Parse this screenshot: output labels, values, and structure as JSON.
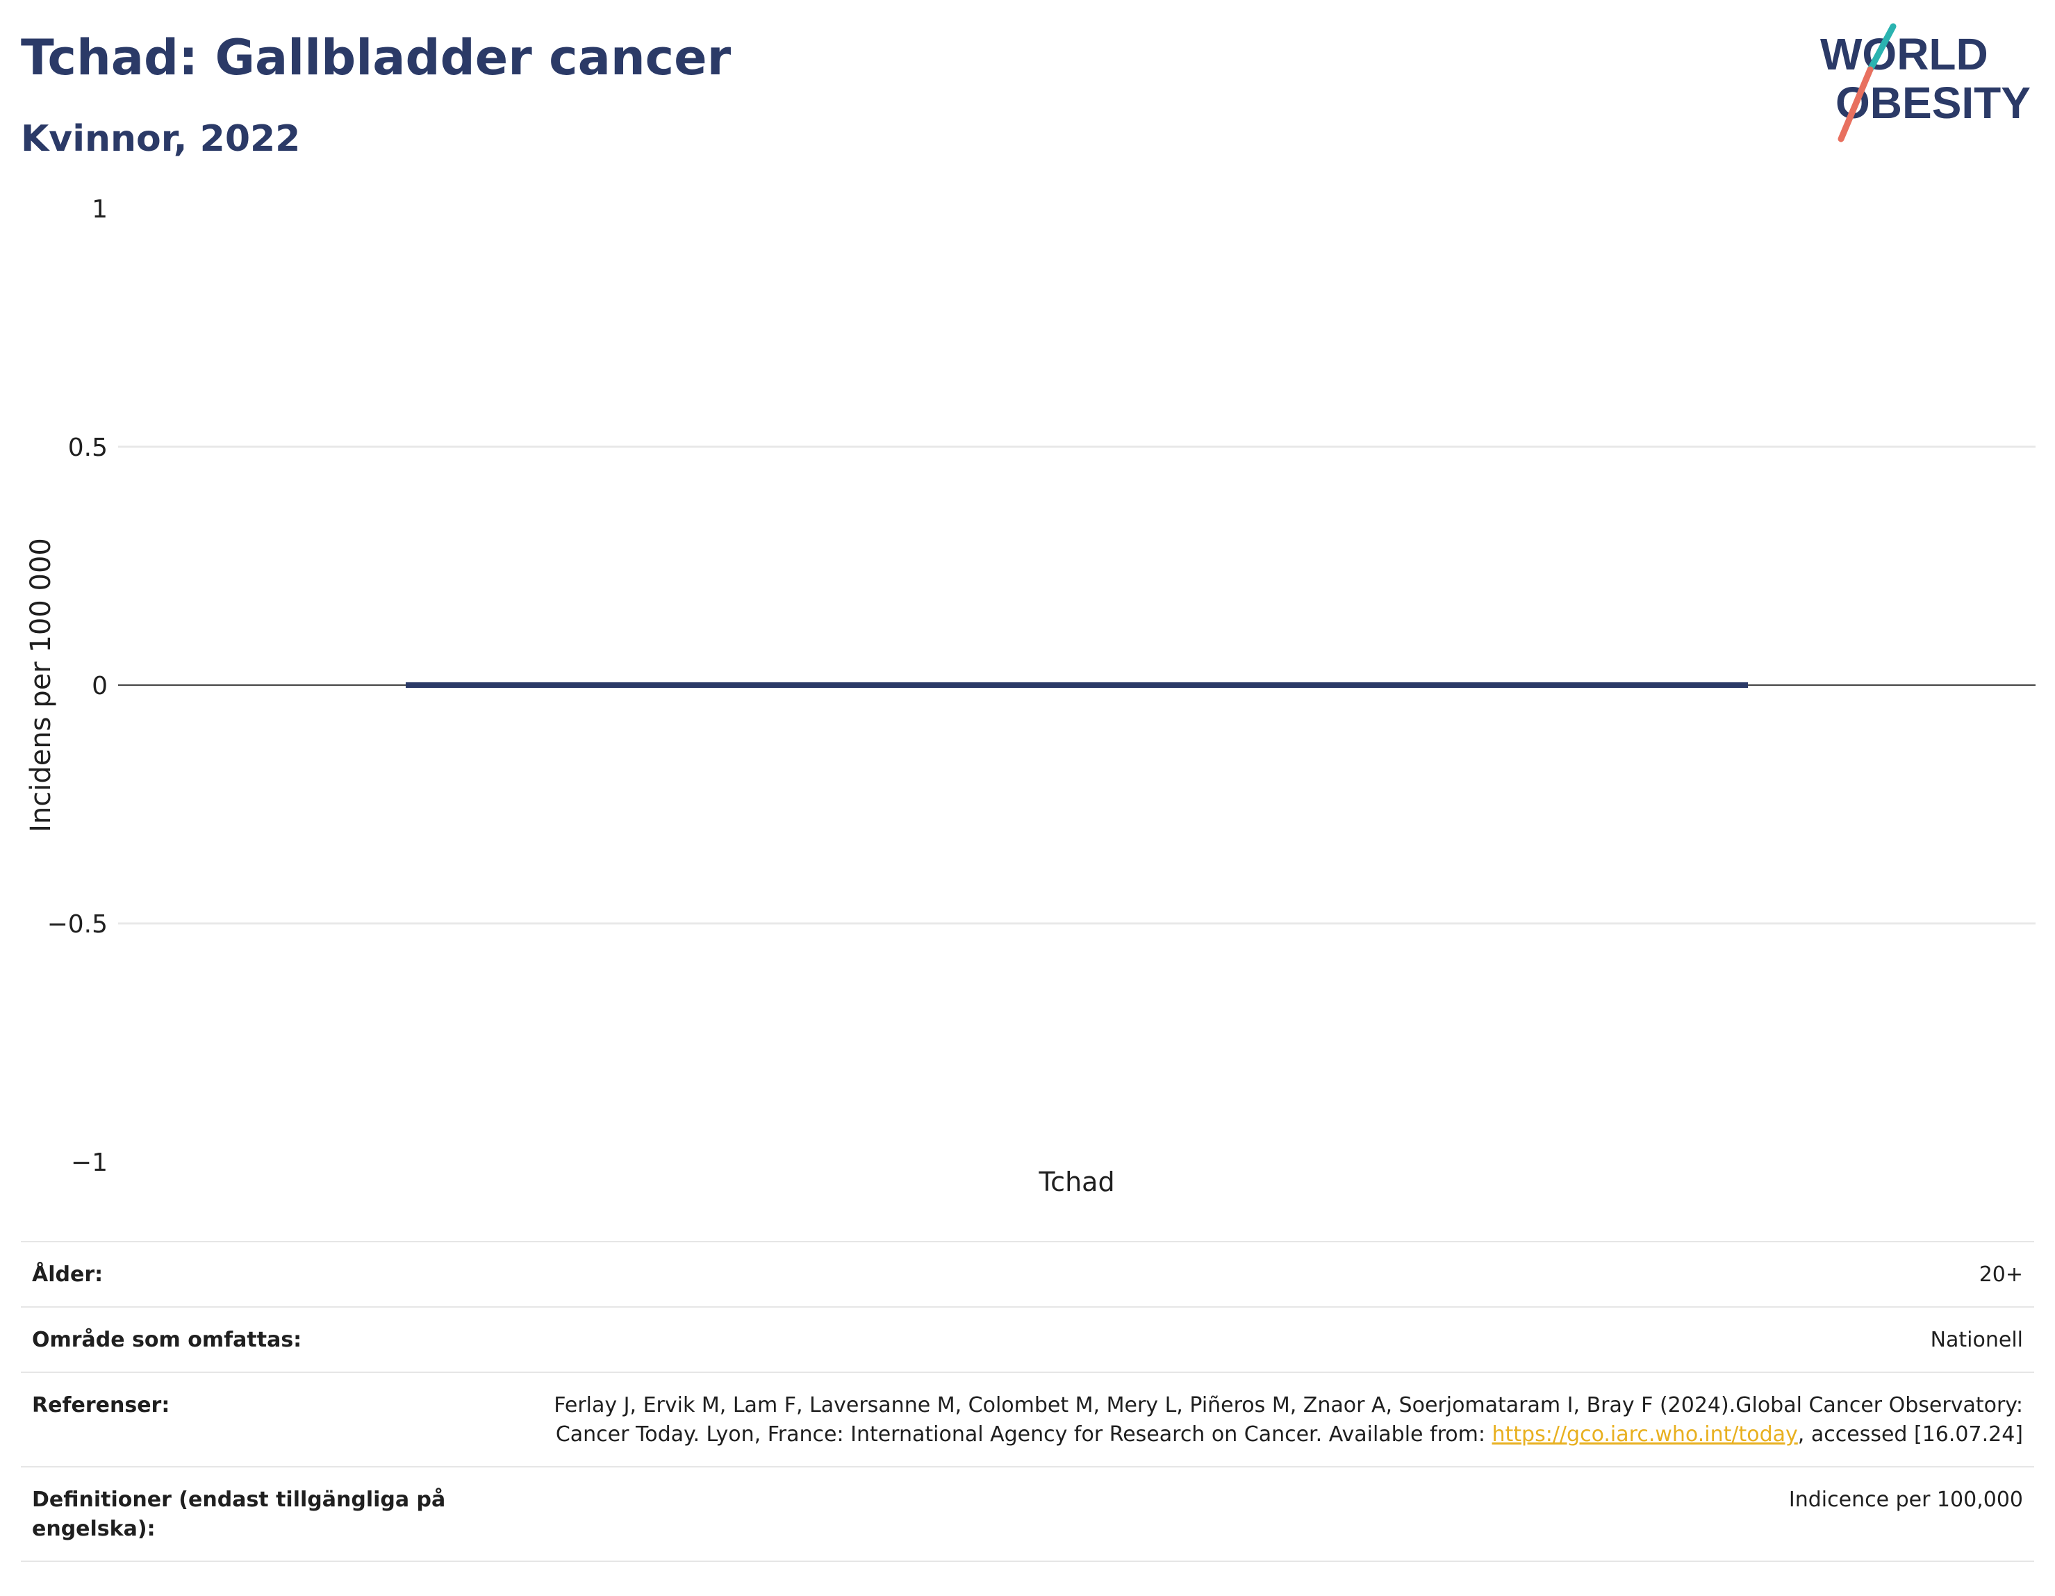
{
  "header": {
    "title": "Tchad: Gallbladder cancer",
    "subtitle": "Kvinnor, 2022"
  },
  "logo": {
    "line1": "WORLD",
    "line2": "OBESITY",
    "slash_colors": [
      "#2ab3b0",
      "#e8705f"
    ]
  },
  "chart_data": {
    "type": "bar",
    "categories": [
      "Tchad"
    ],
    "values": [
      0
    ],
    "ylabel": "Incidens per 100 000",
    "ylim": [
      -1,
      1
    ],
    "yticks": [
      1,
      0.5,
      0,
      -0.5,
      -1
    ],
    "ytick_labels": [
      "1",
      "0.5",
      "0",
      "−0.5",
      "−1"
    ],
    "grid": true,
    "bar_color": "#2b3a67"
  },
  "meta": {
    "rows": [
      {
        "label": "Ålder:",
        "value": "20+"
      },
      {
        "label": "Område som omfattas:",
        "value": "Nationell"
      },
      {
        "label": "Referenser:",
        "value_pre": "Ferlay J, Ervik M, Lam F, Laversanne M, Colombet M, Mery L, Piñeros M, Znaor A, Soerjomataram I, Bray F (2024).Global Cancer Observatory: Cancer Today. Lyon, France: International Agency for Research on Cancer. Available from: ",
        "link": "https://gco.iarc.who.int/today",
        "value_post": ", accessed [16.07.24]"
      },
      {
        "label": "Definitioner (endast tillgängliga på engelska):",
        "value": "Indicence per 100,000"
      }
    ]
  }
}
